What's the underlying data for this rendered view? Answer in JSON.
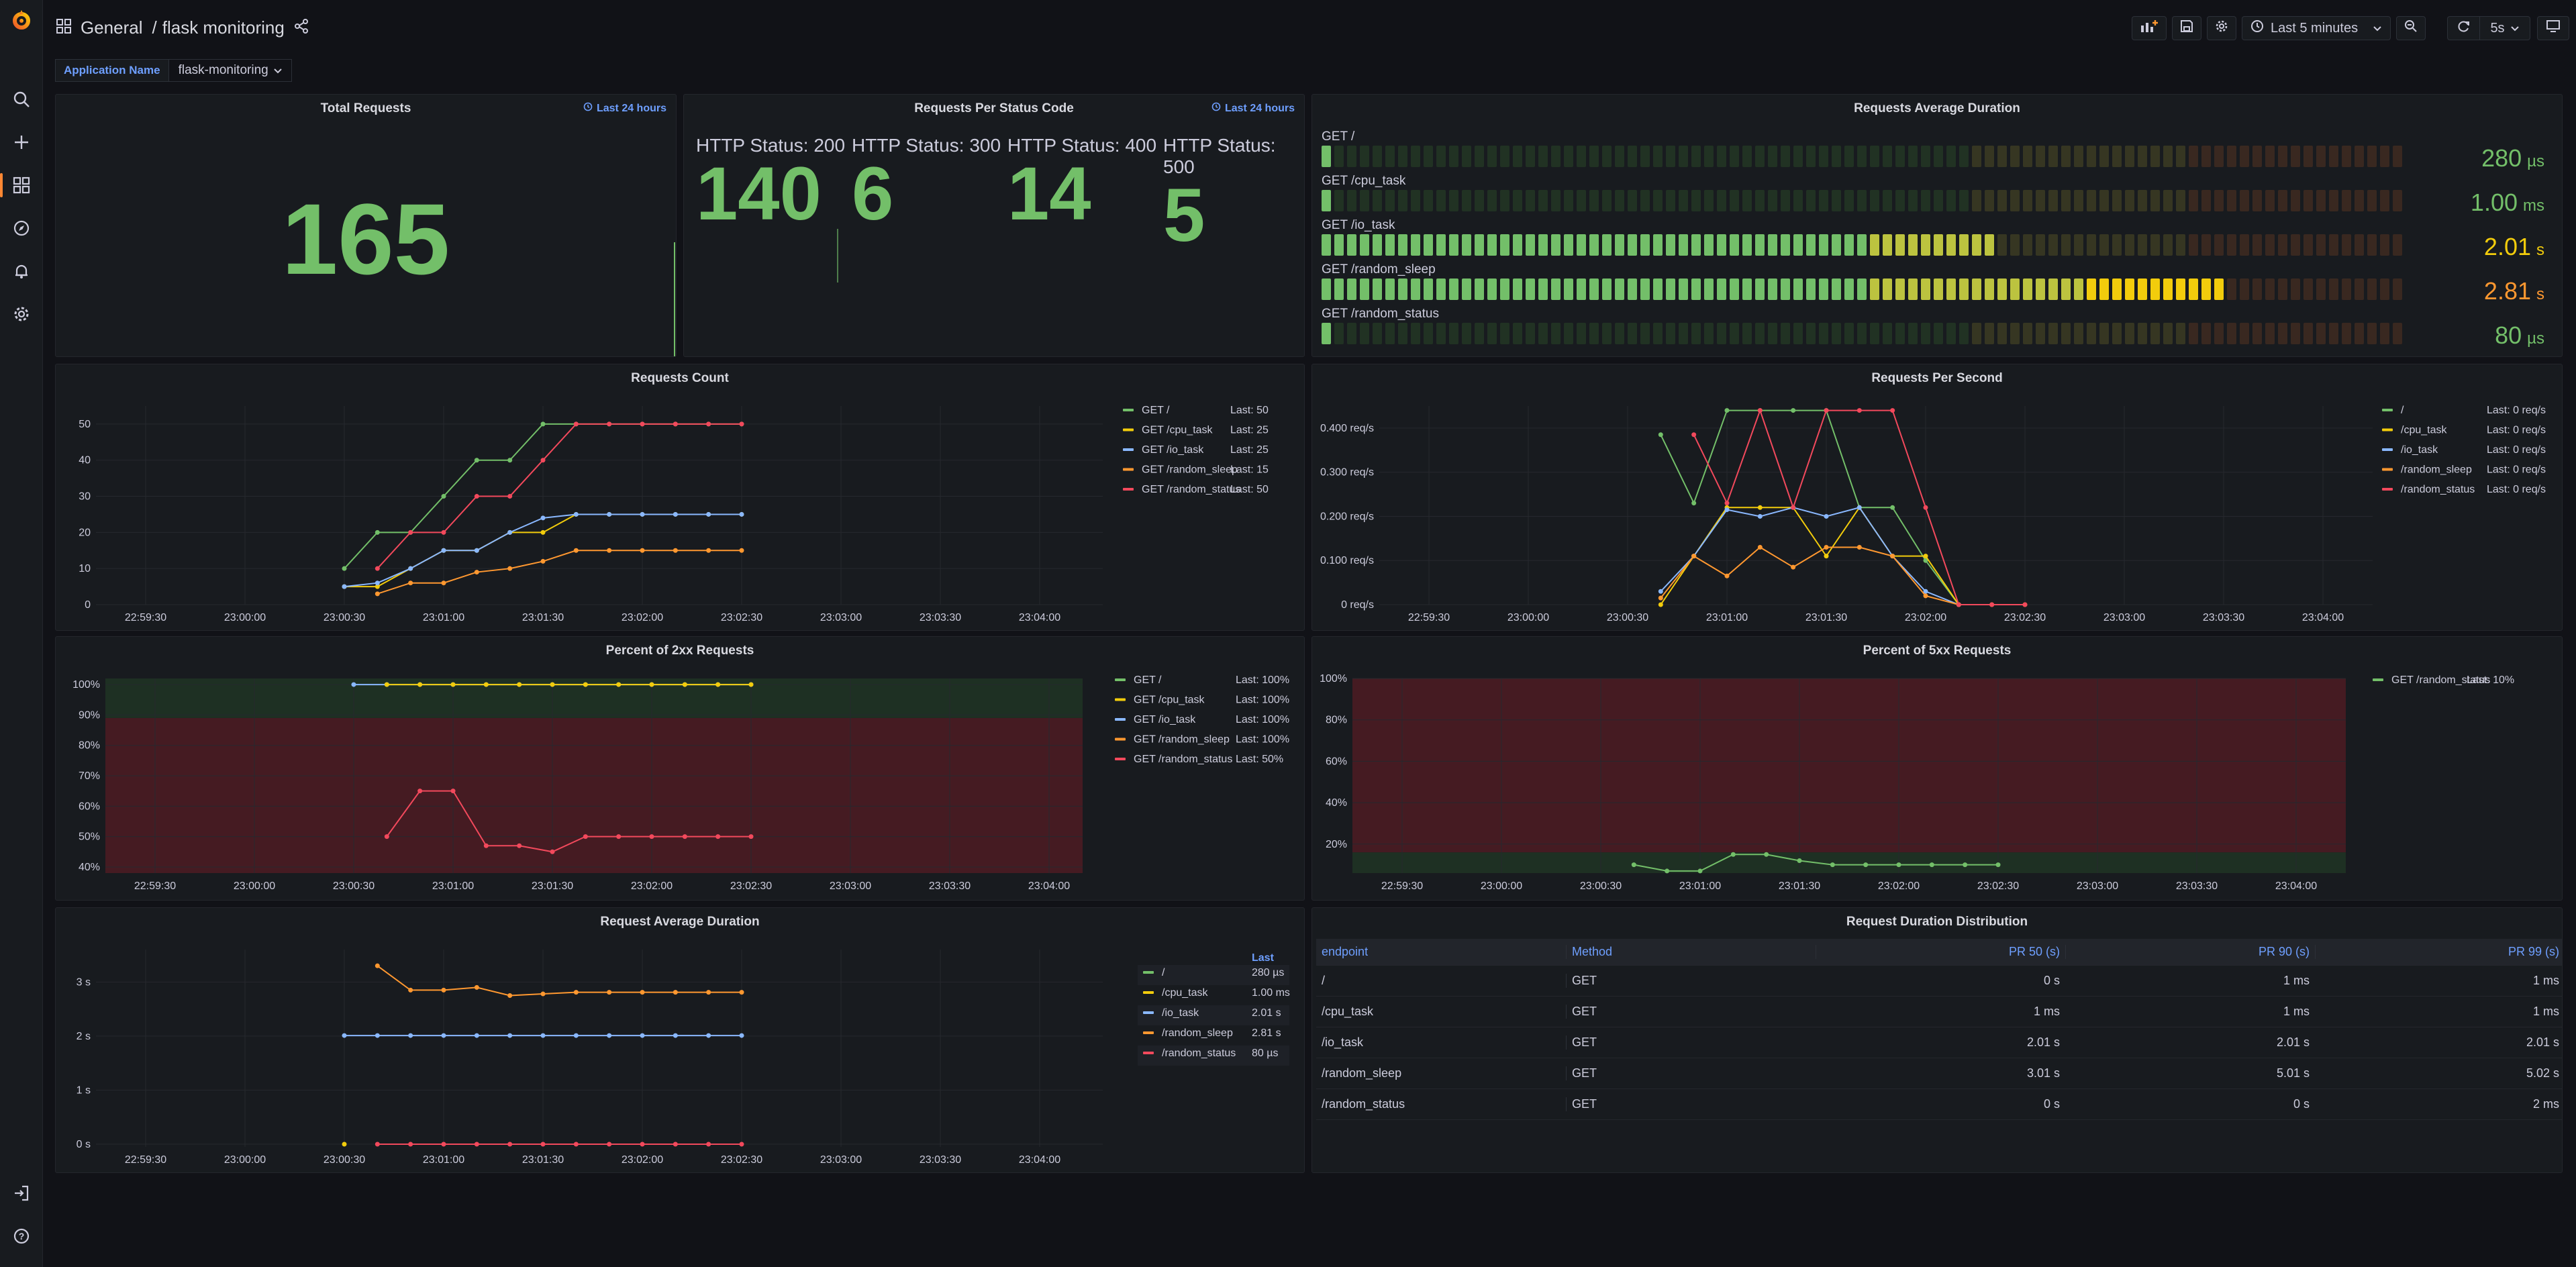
{
  "breadcrumb": {
    "folder": "General",
    "separator": "/",
    "dashboard": "flask monitoring"
  },
  "toolbar": {
    "time_range": "Last 5 minutes",
    "refresh": "5s"
  },
  "variable": {
    "label": "Application Name",
    "value": "flask-monitoring"
  },
  "colors": {
    "green": "#73bf69",
    "yellow": "#f2cc0c",
    "blue": "#8ab8ff",
    "orange": "#ff9830",
    "red": "#f2495c",
    "link": "#6e9fff"
  },
  "total_requests": {
    "title": "Total Requests",
    "range": "Last 24 hours",
    "value": "165"
  },
  "status_codes": {
    "title": "Requests Per Status Code",
    "range": "Last 24 hours",
    "items": [
      {
        "label": "HTTP Status: 200",
        "value": "140"
      },
      {
        "label": "HTTP Status: 300",
        "value": "6"
      },
      {
        "label": "HTTP Status: 400",
        "value": "14"
      },
      {
        "label": "HTTP Status: 500",
        "value": "5"
      }
    ]
  },
  "avg_duration_gauge": {
    "title": "Requests Average Duration",
    "rows": [
      {
        "label": "GET /",
        "value": "280",
        "unit": "µs",
        "fill": 0.01,
        "color": "#73bf69"
      },
      {
        "label": "GET /cpu_task",
        "value": "1.00",
        "unit": "ms",
        "fill": 0.01,
        "color": "#73bf69"
      },
      {
        "label": "GET /io_task",
        "value": "2.01",
        "unit": "s",
        "fill": 0.62,
        "color": "#f2cc0c"
      },
      {
        "label": "GET /random_sleep",
        "value": "2.81",
        "unit": "s",
        "fill": 0.84,
        "color": "#ff9830"
      },
      {
        "label": "GET /random_status",
        "value": "80",
        "unit": "µs",
        "fill": 0.01,
        "color": "#73bf69"
      }
    ]
  },
  "x_ticks": [
    "22:59:30",
    "23:00:00",
    "23:00:30",
    "23:01:00",
    "23:01:30",
    "23:02:00",
    "23:02:30",
    "23:03:00",
    "23:03:30",
    "23:04:00"
  ],
  "requests_count": {
    "title": "Requests Count",
    "y_ticks": [
      "0",
      "10",
      "20",
      "30",
      "40",
      "50"
    ],
    "legend": [
      {
        "name": "GET /",
        "last": "Last: 50",
        "color": "#73bf69"
      },
      {
        "name": "GET /cpu_task",
        "last": "Last: 25",
        "color": "#f2cc0c"
      },
      {
        "name": "GET /io_task",
        "last": "Last: 25",
        "color": "#8ab8ff"
      },
      {
        "name": "GET /random_sleep",
        "last": "Last: 15",
        "color": "#ff9830"
      },
      {
        "name": "GET /random_status",
        "last": "Last: 50",
        "color": "#f2495c"
      }
    ],
    "chart_data": {
      "type": "line",
      "ylim": [
        0,
        55
      ],
      "series": [
        {
          "name": "GET /",
          "color": "#73bf69",
          "t": [
            15,
            17,
            19,
            21,
            23,
            25,
            27,
            29,
            31,
            33,
            35,
            37,
            39
          ],
          "values": [
            10,
            20,
            20,
            30,
            40,
            40,
            50,
            50,
            50,
            50,
            50,
            50,
            50
          ]
        },
        {
          "name": "GET /cpu_task",
          "color": "#f2cc0c",
          "t": [
            15,
            17,
            19,
            21,
            23,
            25,
            27,
            29,
            31,
            33,
            35,
            37,
            39
          ],
          "values": [
            5,
            5,
            10,
            15,
            15,
            20,
            20,
            25,
            25,
            25,
            25,
            25,
            25
          ]
        },
        {
          "name": "GET /io_task",
          "color": "#8ab8ff",
          "t": [
            15,
            17,
            19,
            21,
            23,
            25,
            27,
            29,
            31,
            33,
            35,
            37,
            39
          ],
          "values": [
            5,
            6,
            10,
            15,
            15,
            20,
            24,
            25,
            25,
            25,
            25,
            25,
            25
          ]
        },
        {
          "name": "GET /random_sleep",
          "color": "#ff9830",
          "t": [
            17,
            19,
            21,
            23,
            25,
            27,
            29,
            31,
            33,
            35,
            37,
            39
          ],
          "values": [
            3,
            6,
            6,
            9,
            10,
            12,
            15,
            15,
            15,
            15,
            15,
            15
          ]
        },
        {
          "name": "GET /random_status",
          "color": "#f2495c",
          "t": [
            17,
            19,
            21,
            23,
            25,
            27,
            29,
            31,
            33,
            35,
            37,
            39
          ],
          "values": [
            10,
            20,
            20,
            30,
            30,
            40,
            50,
            50,
            50,
            50,
            50,
            50
          ]
        }
      ]
    }
  },
  "requests_per_second": {
    "title": "Requests Per Second",
    "y_ticks": [
      "0 req/s",
      "0.100 req/s",
      "0.200 req/s",
      "0.300 req/s",
      "0.400 req/s"
    ],
    "legend": [
      {
        "name": "/",
        "last": "Last: 0 req/s",
        "color": "#73bf69"
      },
      {
        "name": "/cpu_task",
        "last": "Last: 0 req/s",
        "color": "#f2cc0c"
      },
      {
        "name": "/io_task",
        "last": "Last: 0 req/s",
        "color": "#8ab8ff"
      },
      {
        "name": "/random_sleep",
        "last": "Last: 0 req/s",
        "color": "#ff9830"
      },
      {
        "name": "/random_status",
        "last": "Last: 0 req/s",
        "color": "#f2495c"
      }
    ],
    "chart_data": {
      "type": "line",
      "ylim": [
        0,
        0.45
      ],
      "series": [
        {
          "name": "/",
          "color": "#73bf69",
          "t": [
            17,
            19,
            21,
            23,
            25,
            27,
            29,
            31,
            33,
            35
          ],
          "values": [
            0.385,
            0.23,
            0.44,
            0.44,
            0.44,
            0.44,
            0.22,
            0.22,
            0.1,
            0
          ]
        },
        {
          "name": "/cpu_task",
          "color": "#f2cc0c",
          "t": [
            17,
            19,
            21,
            23,
            25,
            27,
            29,
            31,
            33,
            35,
            37,
            39
          ],
          "values": [
            0,
            0.11,
            0.22,
            0.22,
            0.22,
            0.11,
            0.22,
            0.11,
            0.11,
            0,
            0,
            0
          ]
        },
        {
          "name": "/io_task",
          "color": "#8ab8ff",
          "t": [
            17,
            19,
            21,
            23,
            25,
            27,
            29,
            31,
            33,
            35
          ],
          "values": [
            0.03,
            0.11,
            0.215,
            0.2,
            0.22,
            0.2,
            0.22,
            0.11,
            0.03,
            0
          ]
        },
        {
          "name": "/random_sleep",
          "color": "#ff9830",
          "t": [
            17,
            19,
            21,
            23,
            25,
            27,
            29,
            31,
            33,
            35
          ],
          "values": [
            0.015,
            0.11,
            0.065,
            0.13,
            0.085,
            0.13,
            0.13,
            0.11,
            0.02,
            0
          ]
        },
        {
          "name": "/random_status",
          "color": "#f2495c",
          "t": [
            19,
            21,
            23,
            25,
            27,
            29,
            31,
            33,
            35,
            37,
            39
          ],
          "values": [
            0.385,
            0.23,
            0.44,
            0.22,
            0.44,
            0.44,
            0.44,
            0.22,
            0,
            0,
            0
          ]
        }
      ]
    }
  },
  "percent_2xx": {
    "title": "Percent of 2xx Requests",
    "y_ticks": [
      "40%",
      "50%",
      "60%",
      "70%",
      "80%",
      "90%",
      "100%"
    ],
    "legend": [
      {
        "name": "GET /",
        "last": "Last: 100%",
        "color": "#73bf69"
      },
      {
        "name": "GET /cpu_task",
        "last": "Last: 100%",
        "color": "#f2cc0c"
      },
      {
        "name": "GET /io_task",
        "last": "Last: 100%",
        "color": "#8ab8ff"
      },
      {
        "name": "GET /random_sleep",
        "last": "Last: 100%",
        "color": "#ff9830"
      },
      {
        "name": "GET /random_status",
        "last": "Last: 50%",
        "color": "#f2495c"
      }
    ],
    "chart_data": {
      "type": "line",
      "ylim": [
        38,
        102
      ],
      "thresholds": [
        {
          "from": 38,
          "to": 89,
          "color": "#4a1c22"
        },
        {
          "from": 89,
          "to": 102,
          "color": "#1f3323"
        }
      ],
      "series": [
        {
          "name": "GET /io_task",
          "color": "#8ab8ff",
          "t": [
            15,
            17,
            19,
            21,
            23,
            25,
            27,
            29,
            31,
            33,
            35,
            37,
            39
          ],
          "values": [
            100,
            100,
            100,
            100,
            100,
            100,
            100,
            100,
            100,
            100,
            100,
            100,
            100
          ]
        },
        {
          "name": "GET /cpu_task",
          "color": "#f2cc0c",
          "t": [
            17,
            19,
            21,
            23,
            25,
            27,
            29,
            31,
            33,
            35,
            37,
            39
          ],
          "values": [
            100,
            100,
            100,
            100,
            100,
            100,
            100,
            100,
            100,
            100,
            100,
            100
          ]
        },
        {
          "name": "GET /random_status",
          "color": "#f2495c",
          "t": [
            17,
            19,
            21,
            23,
            25,
            27,
            29,
            31,
            33,
            35,
            37,
            39
          ],
          "values": [
            50,
            65,
            65,
            47,
            47,
            45,
            50,
            50,
            50,
            50,
            50,
            50
          ]
        }
      ]
    }
  },
  "percent_5xx": {
    "title": "Percent of 5xx Requests",
    "y_ticks": [
      "20%",
      "40%",
      "60%",
      "80%",
      "100%"
    ],
    "legend": [
      {
        "name": "GET /random_status",
        "last": "Last: 10%",
        "color": "#73bf69"
      }
    ],
    "chart_data": {
      "type": "line",
      "ylim": [
        6,
        100
      ],
      "thresholds": [
        {
          "from": 16,
          "to": 100,
          "color": "#4a1c22"
        },
        {
          "from": 6,
          "to": 16,
          "color": "#1f3323"
        }
      ],
      "series": [
        {
          "name": "GET /random_status",
          "color": "#73bf69",
          "t": [
            17,
            19,
            21,
            23,
            25,
            27,
            29,
            31,
            33,
            35,
            37,
            39
          ],
          "values": [
            10,
            7,
            7,
            15,
            15,
            12,
            10,
            10,
            10,
            10,
            10,
            10
          ]
        }
      ]
    }
  },
  "request_avg_duration": {
    "title": "Request Average Duration",
    "legend_header": "Last",
    "y_ticks": [
      "0 s",
      "1 s",
      "2 s",
      "3 s"
    ],
    "legend": [
      {
        "name": "/",
        "last": "280 µs",
        "color": "#73bf69"
      },
      {
        "name": "/cpu_task",
        "last": "1.00 ms",
        "color": "#f2cc0c"
      },
      {
        "name": "/io_task",
        "last": "2.01 s",
        "color": "#8ab8ff"
      },
      {
        "name": "/random_sleep",
        "last": "2.81 s",
        "color": "#ff9830"
      },
      {
        "name": "/random_status",
        "last": "80 µs",
        "color": "#f2495c"
      }
    ],
    "chart_data": {
      "type": "line",
      "ylim": [
        -0.05,
        3.6
      ],
      "series": [
        {
          "name": "/io_task",
          "color": "#8ab8ff",
          "t": [
            15,
            17,
            19,
            21,
            23,
            25,
            27,
            29,
            31,
            33,
            35,
            37,
            39
          ],
          "values": [
            2.01,
            2.01,
            2.01,
            2.01,
            2.01,
            2.01,
            2.01,
            2.01,
            2.01,
            2.01,
            2.01,
            2.01,
            2.01
          ]
        },
        {
          "name": "/random_sleep",
          "color": "#ff9830",
          "t": [
            17,
            19,
            21,
            23,
            25,
            27,
            29,
            31,
            33,
            35,
            37,
            39
          ],
          "values": [
            3.3,
            2.85,
            2.85,
            2.9,
            2.75,
            2.78,
            2.81,
            2.81,
            2.81,
            2.81,
            2.81,
            2.81
          ]
        },
        {
          "name": "/cpu_task",
          "color": "#f2cc0c",
          "t": [
            15
          ],
          "values": [
            0
          ]
        },
        {
          "name": "/random_status",
          "color": "#f2495c",
          "t": [
            17,
            19,
            21,
            23,
            25,
            27,
            29,
            31,
            33,
            35,
            37,
            39
          ],
          "values": [
            0,
            0,
            0,
            0,
            0,
            0,
            0,
            0,
            0,
            0,
            0,
            0
          ]
        }
      ]
    }
  },
  "duration_table": {
    "title": "Request Duration Distribution",
    "headers": [
      "endpoint",
      "Method",
      "PR 50 (s)",
      "PR 90 (s)",
      "PR 99 (s)"
    ],
    "rows": [
      [
        "/",
        "GET",
        "0 s",
        "1 ms",
        "1 ms"
      ],
      [
        "/cpu_task",
        "GET",
        "1 ms",
        "1 ms",
        "1 ms"
      ],
      [
        "/io_task",
        "GET",
        "2.01 s",
        "2.01 s",
        "2.01 s"
      ],
      [
        "/random_sleep",
        "GET",
        "3.01 s",
        "5.01 s",
        "5.02 s"
      ],
      [
        "/random_status",
        "GET",
        "0 s",
        "0 s",
        "2 ms"
      ]
    ]
  }
}
